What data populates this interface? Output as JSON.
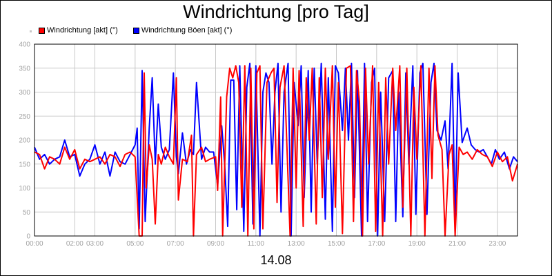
{
  "chart_data": {
    "type": "line",
    "title": "Windrichtung [pro Tag]",
    "date_label": "14.08",
    "xlabel": "",
    "ylabel": "",
    "ylim": [
      0,
      400
    ],
    "y_ticks": [
      0,
      50,
      100,
      150,
      200,
      250,
      300,
      350,
      400
    ],
    "x_range_hours": [
      0,
      24
    ],
    "x_ticks": [
      {
        "h": 0,
        "label": "00:00"
      },
      {
        "h": 2,
        "label": "02:00"
      },
      {
        "h": 3,
        "label": "03:00"
      },
      {
        "h": 5,
        "label": "05:00"
      },
      {
        "h": 7,
        "label": "07:00"
      },
      {
        "h": 9,
        "label": "09:00"
      },
      {
        "h": 11,
        "label": "11:00"
      },
      {
        "h": 13,
        "label": "13:00"
      },
      {
        "h": 15,
        "label": "15:00"
      },
      {
        "h": 17,
        "label": "17:00"
      },
      {
        "h": 19,
        "label": "19:00"
      },
      {
        "h": 21,
        "label": "21:00"
      },
      {
        "h": 23,
        "label": "23:00"
      }
    ],
    "grid": true,
    "legend_position": "top-left",
    "series": [
      {
        "name": "Windrichtung [akt] (°)",
        "color": "#ff0000",
        "points": [
          [
            0,
            175
          ],
          [
            0.25,
            170
          ],
          [
            0.5,
            140
          ],
          [
            0.75,
            165
          ],
          [
            1,
            160
          ],
          [
            1.25,
            150
          ],
          [
            1.5,
            185
          ],
          [
            1.75,
            160
          ],
          [
            2,
            180
          ],
          [
            2.25,
            140
          ],
          [
            2.5,
            160
          ],
          [
            2.75,
            155
          ],
          [
            3,
            160
          ],
          [
            3.25,
            165
          ],
          [
            3.5,
            150
          ],
          [
            3.75,
            170
          ],
          [
            4,
            165
          ],
          [
            4.25,
            145
          ],
          [
            4.5,
            170
          ],
          [
            4.75,
            175
          ],
          [
            5,
            165
          ],
          [
            5.2,
            0
          ],
          [
            5.35,
            0
          ],
          [
            5.45,
            340
          ],
          [
            5.55,
            100
          ],
          [
            5.7,
            190
          ],
          [
            5.85,
            160
          ],
          [
            6,
            25
          ],
          [
            6.15,
            170
          ],
          [
            6.3,
            150
          ],
          [
            6.5,
            185
          ],
          [
            6.7,
            165
          ],
          [
            6.9,
            150
          ],
          [
            7.05,
            330
          ],
          [
            7.15,
            75
          ],
          [
            7.35,
            160
          ],
          [
            7.6,
            155
          ],
          [
            7.8,
            210
          ],
          [
            7.9,
            0
          ],
          [
            8.05,
            170
          ],
          [
            8.3,
            185
          ],
          [
            8.5,
            155
          ],
          [
            8.7,
            160
          ],
          [
            9,
            165
          ],
          [
            9.1,
            95
          ],
          [
            9.25,
            290
          ],
          [
            9.35,
            0
          ],
          [
            9.55,
            290
          ],
          [
            9.7,
            350
          ],
          [
            9.85,
            330
          ],
          [
            10,
            355
          ],
          [
            10.15,
            320
          ],
          [
            10.3,
            60
          ],
          [
            10.45,
            355
          ],
          [
            10.6,
            0
          ],
          [
            10.75,
            350
          ],
          [
            10.9,
            15
          ],
          [
            11.05,
            340
          ],
          [
            11.2,
            355
          ],
          [
            11.35,
            15
          ],
          [
            11.55,
            320
          ],
          [
            11.75,
            340
          ],
          [
            11.9,
            350
          ],
          [
            12.05,
            70
          ],
          [
            12.2,
            310
          ],
          [
            12.4,
            355
          ],
          [
            12.55,
            180
          ],
          [
            12.7,
            0
          ],
          [
            12.85,
            350
          ],
          [
            13,
            100
          ],
          [
            13.15,
            345
          ],
          [
            13.35,
            20
          ],
          [
            13.5,
            330
          ],
          [
            13.65,
            200
          ],
          [
            13.8,
            350
          ],
          [
            14,
            25
          ],
          [
            14.15,
            330
          ],
          [
            14.3,
            80
          ],
          [
            14.45,
            350
          ],
          [
            14.6,
            160
          ],
          [
            14.8,
            355
          ],
          [
            14.95,
            60
          ],
          [
            15.1,
            320
          ],
          [
            15.3,
            5
          ],
          [
            15.5,
            350
          ],
          [
            15.7,
            355
          ],
          [
            15.85,
            30
          ],
          [
            16,
            345
          ],
          [
            16.15,
            280
          ],
          [
            16.3,
            0
          ],
          [
            16.45,
            350
          ],
          [
            16.6,
            150
          ],
          [
            16.8,
            355
          ],
          [
            16.95,
            10
          ],
          [
            17.1,
            320
          ],
          [
            17.3,
            0
          ],
          [
            17.45,
            330
          ],
          [
            17.6,
            150
          ],
          [
            17.8,
            350
          ],
          [
            17.95,
            220
          ],
          [
            18.15,
            355
          ],
          [
            18.3,
            60
          ],
          [
            18.5,
            350
          ],
          [
            18.7,
            0
          ],
          [
            18.85,
            310
          ],
          [
            19,
            160
          ],
          [
            19.2,
            355
          ],
          [
            19.4,
            0
          ],
          [
            19.6,
            350
          ],
          [
            19.75,
            120
          ],
          [
            19.9,
            355
          ],
          [
            20.05,
            210
          ],
          [
            20.25,
            180
          ],
          [
            20.4,
            0
          ],
          [
            20.6,
            170
          ],
          [
            20.75,
            190
          ],
          [
            20.9,
            0
          ],
          [
            21.1,
            185
          ],
          [
            21.3,
            170
          ],
          [
            21.5,
            175
          ],
          [
            21.75,
            160
          ],
          [
            22,
            180
          ],
          [
            22.25,
            170
          ],
          [
            22.5,
            165
          ],
          [
            22.75,
            145
          ],
          [
            23,
            175
          ],
          [
            23.25,
            155
          ],
          [
            23.5,
            165
          ],
          [
            23.75,
            115
          ],
          [
            24,
            150
          ]
        ]
      },
      {
        "name": "Windrichtung Böen [akt] (°)",
        "color": "#0000ff",
        "points": [
          [
            0,
            185
          ],
          [
            0.25,
            160
          ],
          [
            0.5,
            170
          ],
          [
            0.75,
            150
          ],
          [
            1,
            160
          ],
          [
            1.25,
            165
          ],
          [
            1.5,
            200
          ],
          [
            1.75,
            165
          ],
          [
            2,
            170
          ],
          [
            2.25,
            125
          ],
          [
            2.5,
            150
          ],
          [
            2.75,
            160
          ],
          [
            3,
            190
          ],
          [
            3.25,
            150
          ],
          [
            3.5,
            175
          ],
          [
            3.75,
            125
          ],
          [
            4,
            175
          ],
          [
            4.25,
            155
          ],
          [
            4.5,
            150
          ],
          [
            4.75,
            170
          ],
          [
            5,
            190
          ],
          [
            5.1,
            225
          ],
          [
            5.2,
            15
          ],
          [
            5.35,
            345
          ],
          [
            5.5,
            30
          ],
          [
            5.7,
            225
          ],
          [
            5.85,
            330
          ],
          [
            6,
            150
          ],
          [
            6.15,
            275
          ],
          [
            6.3,
            185
          ],
          [
            6.5,
            160
          ],
          [
            6.7,
            180
          ],
          [
            6.9,
            340
          ],
          [
            7.05,
            165
          ],
          [
            7.15,
            130
          ],
          [
            7.35,
            215
          ],
          [
            7.55,
            150
          ],
          [
            7.75,
            180
          ],
          [
            7.9,
            170
          ],
          [
            8.05,
            320
          ],
          [
            8.3,
            160
          ],
          [
            8.5,
            185
          ],
          [
            8.7,
            175
          ],
          [
            8.9,
            175
          ],
          [
            9.1,
            105
          ],
          [
            9.3,
            230
          ],
          [
            9.45,
            150
          ],
          [
            9.6,
            20
          ],
          [
            9.75,
            325
          ],
          [
            9.9,
            325
          ],
          [
            10.05,
            55
          ],
          [
            10.2,
            355
          ],
          [
            10.4,
            10
          ],
          [
            10.55,
            310
          ],
          [
            10.7,
            360
          ],
          [
            10.85,
            25
          ],
          [
            11,
            355
          ],
          [
            11.2,
            0
          ],
          [
            11.35,
            300
          ],
          [
            11.5,
            340
          ],
          [
            11.65,
            320
          ],
          [
            11.8,
            150
          ],
          [
            11.95,
            300
          ],
          [
            12.1,
            360
          ],
          [
            12.25,
            50
          ],
          [
            12.4,
            300
          ],
          [
            12.6,
            360
          ],
          [
            12.75,
            0
          ],
          [
            12.9,
            320
          ],
          [
            13.1,
            230
          ],
          [
            13.25,
            355
          ],
          [
            13.4,
            80
          ],
          [
            13.6,
            345
          ],
          [
            13.75,
            50
          ],
          [
            13.9,
            350
          ],
          [
            14.05,
            150
          ],
          [
            14.25,
            360
          ],
          [
            14.45,
            35
          ],
          [
            14.6,
            330
          ],
          [
            14.8,
            10
          ],
          [
            14.95,
            355
          ],
          [
            15.1,
            340
          ],
          [
            15.3,
            220
          ],
          [
            15.45,
            350
          ],
          [
            15.6,
            200
          ],
          [
            15.75,
            360
          ],
          [
            15.9,
            80
          ],
          [
            16.05,
            345
          ],
          [
            16.25,
            0
          ],
          [
            16.4,
            360
          ],
          [
            16.55,
            30
          ],
          [
            16.75,
            320
          ],
          [
            16.9,
            350
          ],
          [
            17.05,
            0
          ],
          [
            17.2,
            300
          ],
          [
            17.4,
            30
          ],
          [
            17.6,
            330
          ],
          [
            17.8,
            345
          ],
          [
            17.95,
            30
          ],
          [
            18.1,
            300
          ],
          [
            18.3,
            40
          ],
          [
            18.45,
            340
          ],
          [
            18.6,
            150
          ],
          [
            18.8,
            355
          ],
          [
            18.95,
            45
          ],
          [
            19.15,
            340
          ],
          [
            19.3,
            360
          ],
          [
            19.5,
            45
          ],
          [
            19.7,
            320
          ],
          [
            19.85,
            360
          ],
          [
            20,
            220
          ],
          [
            20.2,
            200
          ],
          [
            20.4,
            240
          ],
          [
            20.55,
            140
          ],
          [
            20.75,
            360
          ],
          [
            20.9,
            30
          ],
          [
            21.05,
            340
          ],
          [
            21.25,
            195
          ],
          [
            21.5,
            225
          ],
          [
            21.7,
            190
          ],
          [
            21.9,
            180
          ],
          [
            22.1,
            175
          ],
          [
            22.3,
            180
          ],
          [
            22.5,
            165
          ],
          [
            22.7,
            150
          ],
          [
            22.9,
            180
          ],
          [
            23.1,
            160
          ],
          [
            23.35,
            175
          ],
          [
            23.6,
            140
          ],
          [
            23.8,
            165
          ],
          [
            24,
            155
          ]
        ]
      }
    ]
  }
}
